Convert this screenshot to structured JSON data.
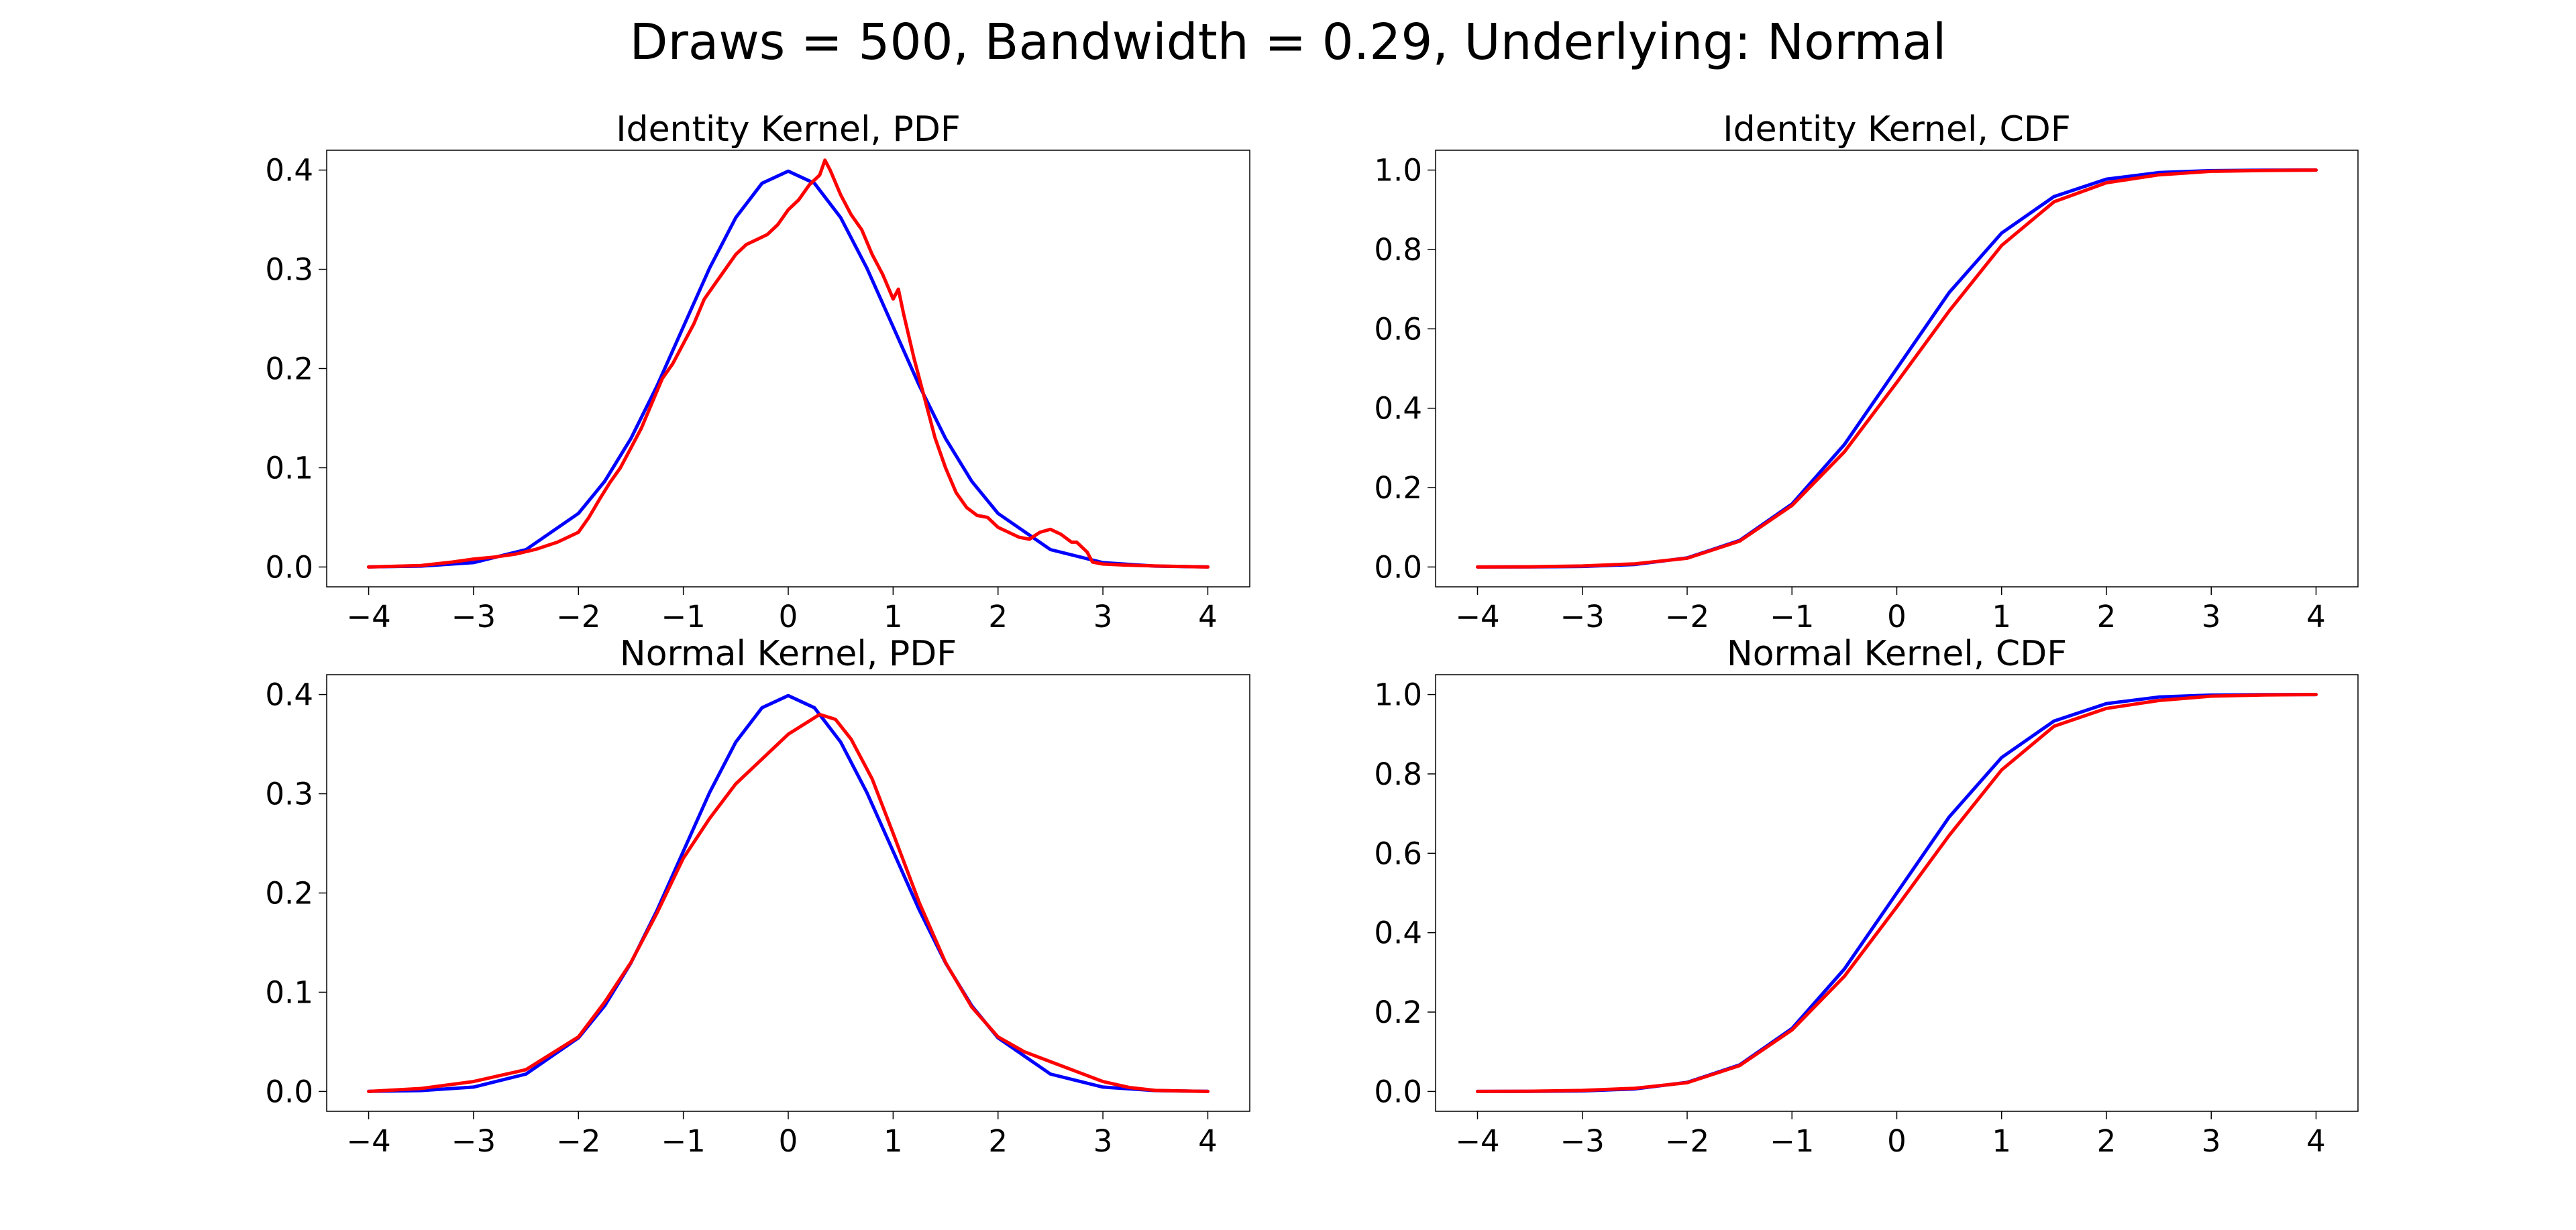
{
  "figure": {
    "title": "Draws = 500, Bandwidth = 0.29, Underlying: Normal",
    "colors": {
      "true": "#0000ff",
      "estimate": "#ff0000"
    }
  },
  "chart_data": [
    {
      "type": "line",
      "title": "Identity Kernel, PDF",
      "xlim": [
        -4.4,
        4.4
      ],
      "ylim": [
        -0.02,
        0.42
      ],
      "xticks": [
        -4,
        -3,
        -2,
        -1,
        0,
        1,
        2,
        3,
        4
      ],
      "xtick_labels": [
        "−4",
        "−3",
        "−2",
        "−1",
        "0",
        "1",
        "2",
        "3",
        "4"
      ],
      "yticks": [
        0.0,
        0.1,
        0.2,
        0.3,
        0.4
      ],
      "ytick_labels": [
        "0.0",
        "0.1",
        "0.2",
        "0.3",
        "0.4"
      ],
      "series": [
        {
          "color": "#0000ff",
          "x": [
            -4,
            -3.5,
            -3,
            -2.5,
            -2,
            -1.75,
            -1.5,
            -1.25,
            -1,
            -0.75,
            -0.5,
            -0.25,
            0,
            0.25,
            0.5,
            0.75,
            1,
            1.25,
            1.5,
            1.75,
            2,
            2.5,
            3,
            3.5,
            4
          ],
          "y": [
            0.0001,
            0.0009,
            0.0044,
            0.0175,
            0.054,
            0.0863,
            0.1295,
            0.1826,
            0.242,
            0.3011,
            0.3521,
            0.3867,
            0.3989,
            0.3867,
            0.3521,
            0.3011,
            0.242,
            0.1826,
            0.1295,
            0.0863,
            0.054,
            0.0175,
            0.0044,
            0.0009,
            0.0001
          ]
        },
        {
          "color": "#ff0000",
          "x": [
            -4,
            -3.5,
            -3.2,
            -3.0,
            -2.8,
            -2.6,
            -2.4,
            -2.2,
            -2.0,
            -1.9,
            -1.8,
            -1.7,
            -1.6,
            -1.5,
            -1.4,
            -1.3,
            -1.2,
            -1.1,
            -1.0,
            -0.9,
            -0.8,
            -0.7,
            -0.6,
            -0.5,
            -0.4,
            -0.3,
            -0.2,
            -0.1,
            0.0,
            0.1,
            0.2,
            0.3,
            0.35,
            0.4,
            0.5,
            0.6,
            0.7,
            0.8,
            0.9,
            1.0,
            1.05,
            1.1,
            1.2,
            1.3,
            1.4,
            1.5,
            1.6,
            1.7,
            1.8,
            1.9,
            2.0,
            2.1,
            2.2,
            2.3,
            2.4,
            2.5,
            2.6,
            2.7,
            2.75,
            2.8,
            2.85,
            2.9,
            3.0,
            3.2,
            3.5,
            4.0
          ],
          "y": [
            0.0,
            0.0015,
            0.005,
            0.008,
            0.01,
            0.013,
            0.018,
            0.025,
            0.035,
            0.05,
            0.068,
            0.085,
            0.1,
            0.12,
            0.14,
            0.165,
            0.19,
            0.205,
            0.225,
            0.245,
            0.27,
            0.285,
            0.3,
            0.315,
            0.325,
            0.33,
            0.335,
            0.345,
            0.36,
            0.37,
            0.385,
            0.395,
            0.41,
            0.4,
            0.375,
            0.355,
            0.34,
            0.315,
            0.295,
            0.27,
            0.28,
            0.255,
            0.21,
            0.17,
            0.13,
            0.1,
            0.075,
            0.06,
            0.052,
            0.05,
            0.04,
            0.035,
            0.03,
            0.028,
            0.035,
            0.038,
            0.033,
            0.025,
            0.025,
            0.02,
            0.015,
            0.005,
            0.003,
            0.002,
            0.001,
            0.0
          ]
        }
      ]
    },
    {
      "type": "line",
      "title": "Identity Kernel, CDF",
      "xlim": [
        -4.4,
        4.4
      ],
      "ylim": [
        -0.05,
        1.05
      ],
      "xticks": [
        -4,
        -3,
        -2,
        -1,
        0,
        1,
        2,
        3,
        4
      ],
      "xtick_labels": [
        "−4",
        "−3",
        "−2",
        "−1",
        "0",
        "1",
        "2",
        "3",
        "4"
      ],
      "yticks": [
        0.0,
        0.2,
        0.4,
        0.6,
        0.8,
        1.0
      ],
      "ytick_labels": [
        "0.0",
        "0.2",
        "0.4",
        "0.6",
        "0.8",
        "1.0"
      ],
      "series": [
        {
          "color": "#0000ff",
          "x": [
            -4,
            -3.5,
            -3,
            -2.5,
            -2,
            -1.5,
            -1,
            -0.5,
            0,
            0.5,
            1,
            1.5,
            2,
            2.5,
            3,
            3.5,
            4
          ],
          "y": [
            0.0,
            0.0002,
            0.0013,
            0.0062,
            0.0228,
            0.0668,
            0.1587,
            0.3085,
            0.5,
            0.6915,
            0.8413,
            0.9332,
            0.9772,
            0.9938,
            0.9987,
            0.9998,
            1.0
          ]
        },
        {
          "color": "#ff0000",
          "x": [
            -4,
            -3.5,
            -3,
            -2.5,
            -2,
            -1.5,
            -1,
            -0.5,
            0,
            0.5,
            1,
            1.5,
            2,
            2.5,
            3,
            3.5,
            4
          ],
          "y": [
            0.0,
            0.0005,
            0.0025,
            0.008,
            0.022,
            0.065,
            0.155,
            0.29,
            0.465,
            0.645,
            0.81,
            0.92,
            0.968,
            0.988,
            0.997,
            0.999,
            1.0
          ]
        }
      ]
    },
    {
      "type": "line",
      "title": "Normal Kernel, PDF",
      "xlim": [
        -4.4,
        4.4
      ],
      "ylim": [
        -0.02,
        0.42
      ],
      "xticks": [
        -4,
        -3,
        -2,
        -1,
        0,
        1,
        2,
        3,
        4
      ],
      "xtick_labels": [
        "−4",
        "−3",
        "−2",
        "−1",
        "0",
        "1",
        "2",
        "3",
        "4"
      ],
      "yticks": [
        0.0,
        0.1,
        0.2,
        0.3,
        0.4
      ],
      "ytick_labels": [
        "0.0",
        "0.1",
        "0.2",
        "0.3",
        "0.4"
      ],
      "series": [
        {
          "color": "#0000ff",
          "x": [
            -4,
            -3.5,
            -3,
            -2.5,
            -2,
            -1.75,
            -1.5,
            -1.25,
            -1,
            -0.75,
            -0.5,
            -0.25,
            0,
            0.25,
            0.5,
            0.75,
            1,
            1.25,
            1.5,
            1.75,
            2,
            2.5,
            3,
            3.5,
            4
          ],
          "y": [
            0.0001,
            0.0009,
            0.0044,
            0.0175,
            0.054,
            0.0863,
            0.1295,
            0.1826,
            0.242,
            0.3011,
            0.3521,
            0.3867,
            0.3989,
            0.3867,
            0.3521,
            0.3011,
            0.242,
            0.1826,
            0.1295,
            0.0863,
            0.054,
            0.0175,
            0.0044,
            0.0009,
            0.0001
          ]
        },
        {
          "color": "#ff0000",
          "x": [
            -4,
            -3.5,
            -3,
            -2.5,
            -2,
            -1.75,
            -1.5,
            -1.25,
            -1,
            -0.75,
            -0.5,
            -0.25,
            0,
            0.15,
            0.3,
            0.45,
            0.6,
            0.8,
            1,
            1.25,
            1.5,
            1.75,
            2,
            2.25,
            2.5,
            2.75,
            3,
            3.25,
            3.5,
            4
          ],
          "y": [
            0.0,
            0.003,
            0.01,
            0.022,
            0.055,
            0.09,
            0.13,
            0.18,
            0.235,
            0.275,
            0.31,
            0.335,
            0.36,
            0.37,
            0.38,
            0.375,
            0.355,
            0.315,
            0.26,
            0.19,
            0.13,
            0.085,
            0.055,
            0.04,
            0.03,
            0.02,
            0.01,
            0.004,
            0.001,
            0.0
          ]
        }
      ]
    },
    {
      "type": "line",
      "title": "Normal Kernel, CDF",
      "xlim": [
        -4.4,
        4.4
      ],
      "ylim": [
        -0.05,
        1.05
      ],
      "xticks": [
        -4,
        -3,
        -2,
        -1,
        0,
        1,
        2,
        3,
        4
      ],
      "xtick_labels": [
        "−4",
        "−3",
        "−2",
        "−1",
        "0",
        "1",
        "2",
        "3",
        "4"
      ],
      "yticks": [
        0.0,
        0.2,
        0.4,
        0.6,
        0.8,
        1.0
      ],
      "ytick_labels": [
        "0.0",
        "0.2",
        "0.4",
        "0.6",
        "0.8",
        "1.0"
      ],
      "series": [
        {
          "color": "#0000ff",
          "x": [
            -4,
            -3.5,
            -3,
            -2.5,
            -2,
            -1.5,
            -1,
            -0.5,
            0,
            0.5,
            1,
            1.5,
            2,
            2.5,
            3,
            3.5,
            4
          ],
          "y": [
            0.0,
            0.0002,
            0.0013,
            0.0062,
            0.0228,
            0.0668,
            0.1587,
            0.3085,
            0.5,
            0.6915,
            0.8413,
            0.9332,
            0.9772,
            0.9938,
            0.9987,
            0.9998,
            1.0
          ]
        },
        {
          "color": "#ff0000",
          "x": [
            -4,
            -3.5,
            -3,
            -2.5,
            -2,
            -1.5,
            -1,
            -0.5,
            0,
            0.5,
            1,
            1.5,
            2,
            2.5,
            3,
            3.5,
            4
          ],
          "y": [
            0.0,
            0.0005,
            0.0025,
            0.008,
            0.022,
            0.065,
            0.155,
            0.29,
            0.465,
            0.645,
            0.81,
            0.92,
            0.965,
            0.985,
            0.996,
            0.999,
            1.0
          ]
        }
      ]
    }
  ]
}
